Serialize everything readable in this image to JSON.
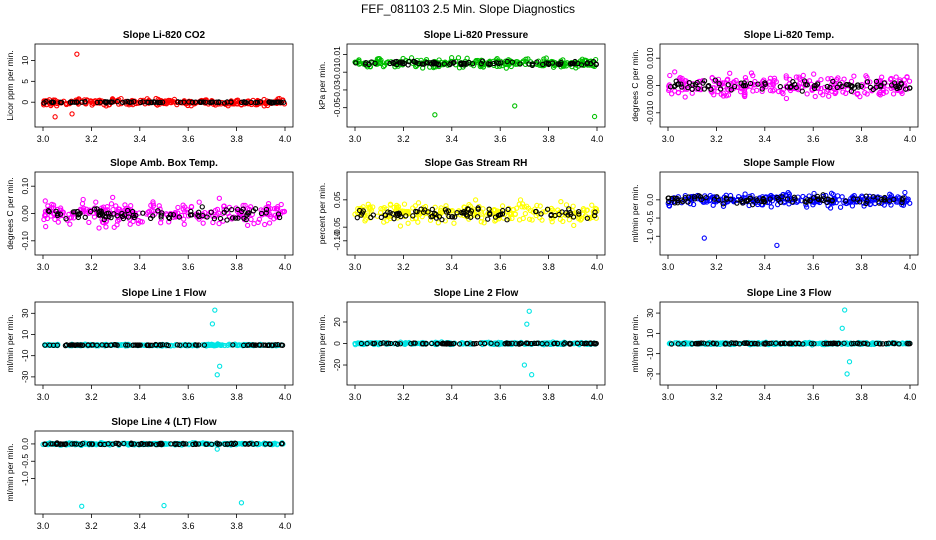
{
  "figure_title": "FEF_081103  2.5 Min. Slope Diagnostics",
  "chart_data": [
    {
      "type": "scatter",
      "title": "Slope Li-820 CO2",
      "ylabel": "Licor ppm per min.",
      "xlim": [
        3.0,
        4.0
      ],
      "ylim": [
        -4.5,
        12.5
      ],
      "xticks": [
        "3.0",
        "3.2",
        "3.4",
        "3.6",
        "3.8",
        "4.0"
      ],
      "yticks": [
        {
          "v": 0,
          "label": "0"
        },
        {
          "v": 5,
          "label": "5"
        },
        {
          "v": 10,
          "label": "10"
        }
      ],
      "series": [
        {
          "color": "#ff0000",
          "center": 0,
          "spread": 1.5,
          "outliers": [
            [
              3.14,
              11.5
            ],
            [
              3.05,
              -3.5
            ],
            [
              3.12,
              -2.8
            ]
          ]
        },
        {
          "color": "#000000",
          "center": 0,
          "spread": 0.3,
          "outliers": []
        }
      ]
    },
    {
      "type": "scatter",
      "title": "Slope Li-820 Pressure",
      "ylabel": "kPa per min.",
      "xlim": [
        3.0,
        4.0
      ],
      "ylim": [
        -0.065,
        0.015
      ],
      "xticks": [
        "3.0",
        "3.2",
        "3.4",
        "3.6",
        "3.8",
        "4.0"
      ],
      "yticks": [
        {
          "v": 0.01,
          "label": "0.01"
        },
        {
          "v": -0.01,
          "label": "-0.01"
        },
        {
          "v": -0.03,
          "label": "-0.03"
        },
        {
          "v": -0.05,
          "label": "-0.05"
        }
      ],
      "series": [
        {
          "color": "#00c000",
          "center": 0.0,
          "spread": 0.01,
          "outliers": [
            [
              3.33,
              -0.058
            ],
            [
              3.66,
              -0.048
            ],
            [
              3.99,
              -0.06
            ]
          ]
        },
        {
          "color": "#000000",
          "center": 0.0,
          "spread": 0.004,
          "outliers": []
        }
      ]
    },
    {
      "type": "scatter",
      "title": "Slope Li-820 Temp.",
      "ylabel": "degrees C per min.",
      "xlim": [
        3.0,
        4.0
      ],
      "ylim": [
        -0.013,
        0.013
      ],
      "xticks": [
        "3.0",
        "3.2",
        "3.4",
        "3.6",
        "3.8",
        "4.0"
      ],
      "yticks": [
        {
          "v": 0.01,
          "label": "0.010"
        },
        {
          "v": 0.0,
          "label": "0.000"
        },
        {
          "v": -0.01,
          "label": "-0.010"
        }
      ],
      "series": [
        {
          "color": "#ff00ff",
          "center": 0.0,
          "spread": 0.008,
          "outliers": []
        },
        {
          "color": "#000000",
          "center": 0.0,
          "spread": 0.004,
          "outliers": []
        }
      ]
    },
    {
      "type": "scatter",
      "title": "Slope Amb. Box Temp.",
      "ylabel": "degrees C per min.",
      "xlim": [
        3.0,
        4.0
      ],
      "ylim": [
        -0.13,
        0.13
      ],
      "xticks": [
        "3.0",
        "3.2",
        "3.4",
        "3.6",
        "3.8",
        "4.0"
      ],
      "yticks": [
        {
          "v": 0.1,
          "label": "0.10"
        },
        {
          "v": 0.0,
          "label": "0.00"
        },
        {
          "v": -0.1,
          "label": "-0.10"
        }
      ],
      "series": [
        {
          "color": "#ff00ff",
          "center": 0.0,
          "spread": 0.08,
          "outliers": []
        },
        {
          "color": "#000000",
          "center": 0.0,
          "spread": 0.04,
          "outliers": []
        }
      ]
    },
    {
      "type": "scatter",
      "title": "Slope Gas Stream RH",
      "ylabel": "percent per min.",
      "xlim": [
        3.0,
        4.0
      ],
      "ylim": [
        -0.13,
        0.13
      ],
      "xticks": [
        "3.0",
        "3.2",
        "3.4",
        "3.6",
        "3.8",
        "4.0"
      ],
      "yticks": [
        {
          "v": 0.05,
          "label": "0.05"
        },
        {
          "v": -0.05,
          "label": "-0.05"
        },
        {
          "v": -0.1,
          "label": "-0.10"
        }
      ],
      "series": [
        {
          "color": "#ffff00",
          "center": 0.0,
          "spread": 0.07,
          "outliers": []
        },
        {
          "color": "#000000",
          "center": 0.0,
          "spread": 0.04,
          "outliers": []
        }
      ]
    },
    {
      "type": "scatter",
      "title": "Slope Sample Flow",
      "ylabel": "ml/min per min.",
      "xlim": [
        3.0,
        4.0
      ],
      "ylim": [
        -1.35,
        0.6
      ],
      "xticks": [
        "3.0",
        "3.2",
        "3.4",
        "3.6",
        "3.8",
        "4.0"
      ],
      "yticks": [
        {
          "v": 0,
          "label": "0.0"
        },
        {
          "v": -0.5,
          "label": "-0.5"
        },
        {
          "v": -1.0,
          "label": "-1.0"
        }
      ],
      "series": [
        {
          "color": "#0000ff",
          "center": 0.0,
          "spread": 0.35,
          "outliers": [
            [
              3.45,
              -1.25
            ],
            [
              3.15,
              -1.05
            ]
          ]
        },
        {
          "color": "#000000",
          "center": 0.0,
          "spread": 0.2,
          "outliers": []
        }
      ]
    },
    {
      "type": "scatter",
      "title": "Slope Line 1 Flow",
      "ylabel": "ml/min per min.",
      "xlim": [
        3.0,
        4.0
      ],
      "ylim": [
        -32,
        35
      ],
      "xticks": [
        "3.0",
        "3.2",
        "3.4",
        "3.6",
        "3.8",
        "4.0"
      ],
      "yticks": [
        {
          "v": 30,
          "label": "30"
        },
        {
          "v": 10,
          "label": "10"
        },
        {
          "v": -10,
          "label": "-10"
        },
        {
          "v": -30,
          "label": "-30"
        }
      ],
      "series": [
        {
          "color": "#00e5e5",
          "center": 0,
          "spread": 1.5,
          "outliers": [
            [
              3.71,
              33
            ],
            [
              3.72,
              -28
            ],
            [
              3.7,
              20
            ],
            [
              3.73,
              -20
            ]
          ]
        },
        {
          "color": "#000000",
          "center": 0,
          "spread": 0.8,
          "outliers": []
        }
      ]
    },
    {
      "type": "scatter",
      "title": "Slope Line 2 Flow",
      "ylabel": "ml/min per min.",
      "xlim": [
        3.0,
        4.0
      ],
      "ylim": [
        -33,
        33
      ],
      "xticks": [
        "3.0",
        "3.2",
        "3.4",
        "3.6",
        "3.8",
        "4.0"
      ],
      "yticks": [
        {
          "v": 20,
          "label": "20"
        },
        {
          "v": 0,
          "label": "0"
        },
        {
          "v": -20,
          "label": "-20"
        }
      ],
      "series": [
        {
          "color": "#00e5e5",
          "center": 0,
          "spread": 2,
          "outliers": [
            [
              3.72,
              30
            ],
            [
              3.73,
              -29
            ],
            [
              3.71,
              18
            ],
            [
              3.7,
              -20
            ]
          ]
        },
        {
          "color": "#000000",
          "center": 0,
          "spread": 1,
          "outliers": []
        }
      ]
    },
    {
      "type": "scatter",
      "title": "Slope Line 3 Flow",
      "ylabel": "ml/min per min.",
      "xlim": [
        3.0,
        4.0
      ],
      "ylim": [
        -35,
        35
      ],
      "xticks": [
        "3.0",
        "3.2",
        "3.4",
        "3.6",
        "3.8",
        "4.0"
      ],
      "yticks": [
        {
          "v": 30,
          "label": "30"
        },
        {
          "v": 10,
          "label": "10"
        },
        {
          "v": -10,
          "label": "-10"
        },
        {
          "v": -30,
          "label": "-30"
        }
      ],
      "series": [
        {
          "color": "#00e5e5",
          "center": 0,
          "spread": 2,
          "outliers": [
            [
              3.73,
              33
            ],
            [
              3.74,
              -30
            ],
            [
              3.72,
              15
            ],
            [
              3.75,
              -18
            ]
          ]
        },
        {
          "color": "#000000",
          "center": 0,
          "spread": 1,
          "outliers": []
        }
      ]
    },
    {
      "type": "scatter",
      "title": "Slope Line 4 (LT) Flow",
      "ylabel": "ml/min per min.",
      "xlim": [
        3.0,
        4.0
      ],
      "ylim": [
        -1.85,
        0.2
      ],
      "xticks": [
        "3.0",
        "3.2",
        "3.4",
        "3.6",
        "3.8",
        "4.0"
      ],
      "yticks": [
        {
          "v": 0,
          "label": "0.0"
        },
        {
          "v": -0.5,
          "label": "-0.5"
        },
        {
          "v": -1.0,
          "label": "-1.0"
        }
      ],
      "series": [
        {
          "color": "#00e5e5",
          "center": 0,
          "spread": 0.06,
          "outliers": [
            [
              3.16,
              -1.8
            ],
            [
              3.5,
              -1.78
            ],
            [
              3.82,
              -1.7
            ],
            [
              3.72,
              -0.15
            ]
          ]
        },
        {
          "color": "#000000",
          "center": 0,
          "spread": 0.04,
          "outliers": []
        }
      ]
    }
  ]
}
